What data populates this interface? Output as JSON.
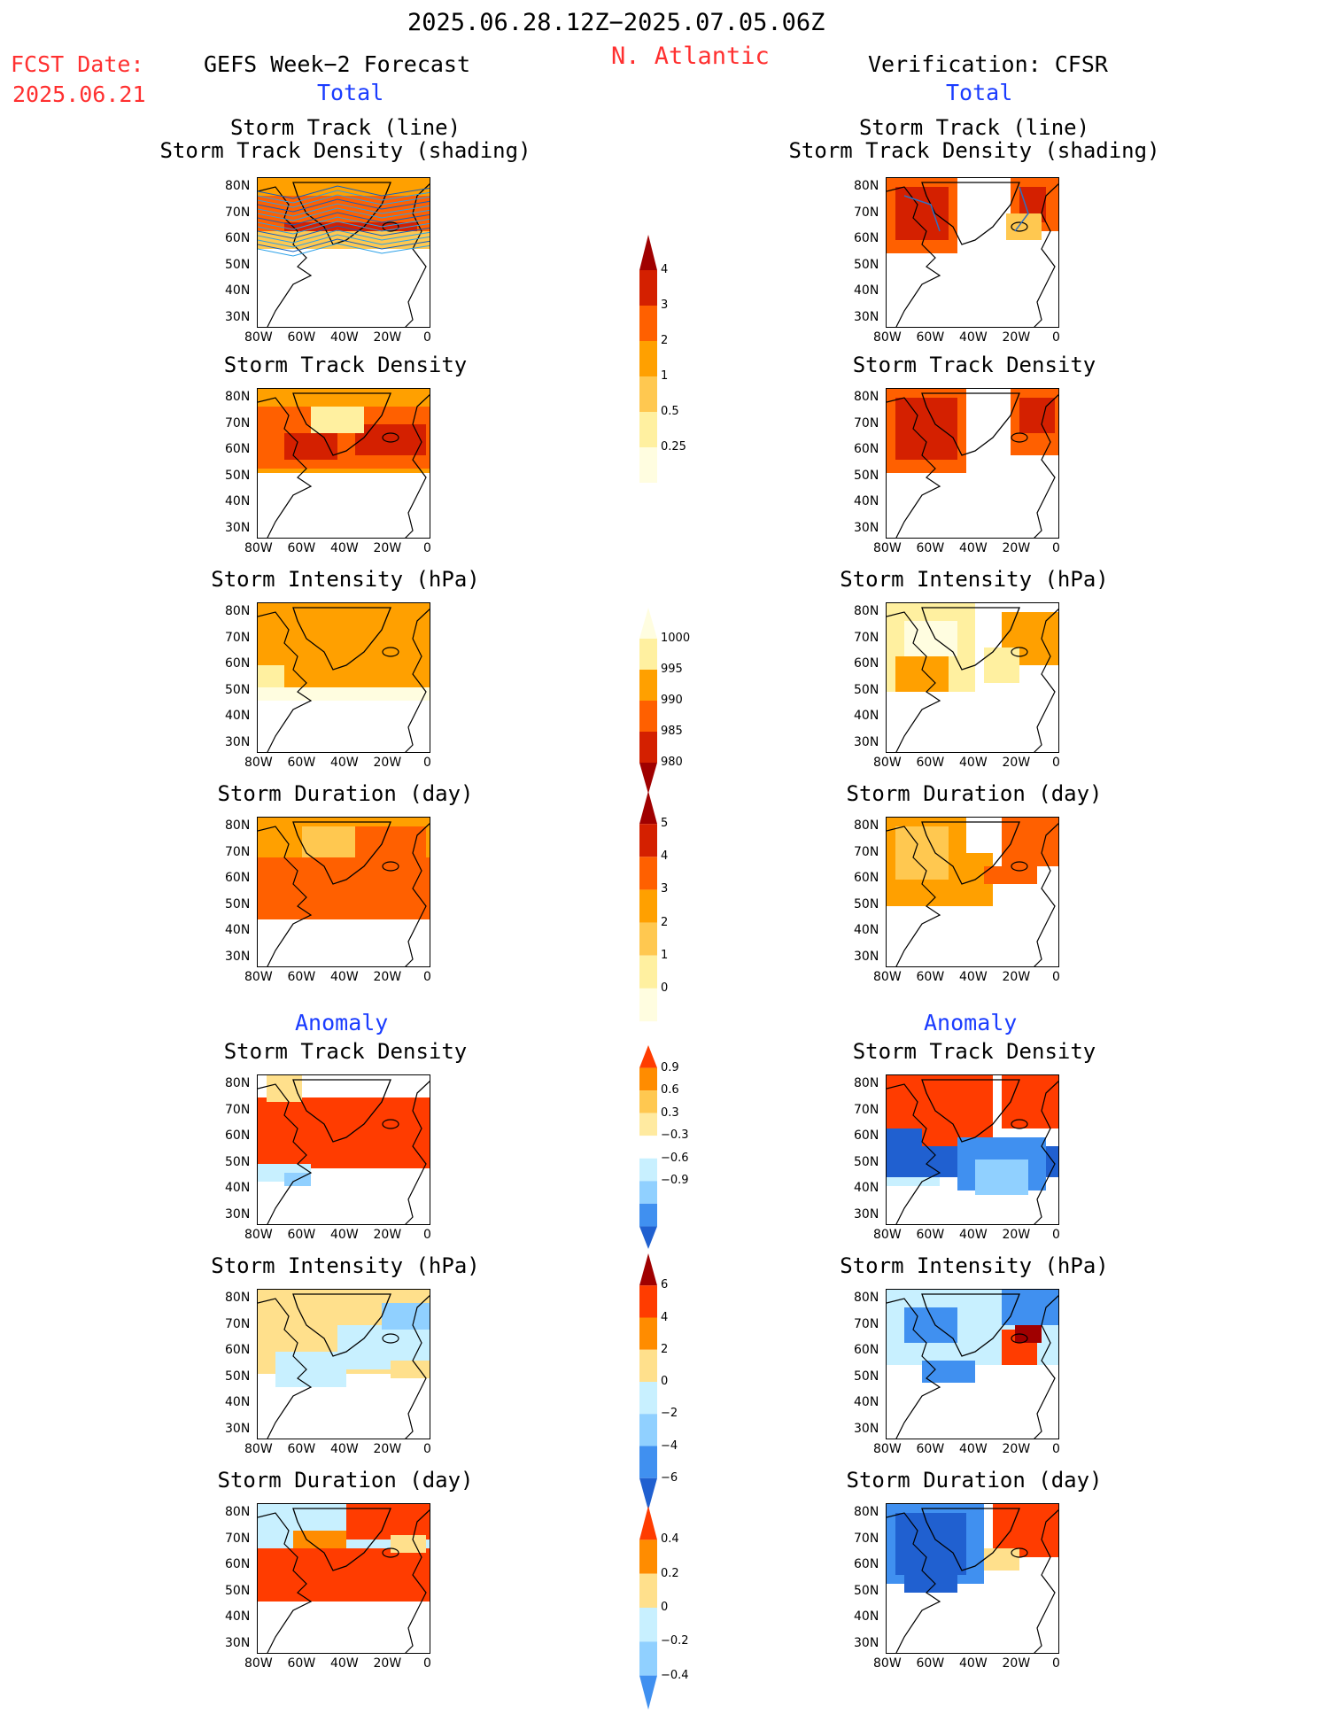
{
  "header": {
    "period": "2025.06.28.12Z−2025.07.05.06Z",
    "region": "N. Atlantic",
    "fcst_label": "FCST Date:",
    "fcst_date": "2025.06.21",
    "left_title": "GEFS Week−2 Forecast",
    "right_title": "Verification: CFSR",
    "total_left": "Total",
    "total_right": "Total",
    "anomaly_left": "Anomaly",
    "anomaly_right": "Anomaly"
  },
  "axes": {
    "y_labels": [
      "80N",
      "70N",
      "60N",
      "50N",
      "40N",
      "30N"
    ],
    "x_labels": [
      "80W",
      "60W",
      "40W",
      "20W",
      "0"
    ]
  },
  "panels": [
    {
      "row": 0,
      "title1": "Storm Track (line)",
      "title2": "Storm Track Density (shading)"
    },
    {
      "row": 1,
      "title1": "Storm Track Density",
      "title2": ""
    },
    {
      "row": 2,
      "title1": "Storm Intensity (hPa)",
      "title2": ""
    },
    {
      "row": 3,
      "title1": "Storm Duration (day)",
      "title2": ""
    },
    {
      "row": 4,
      "title1": "Storm Track Density",
      "title2": ""
    },
    {
      "row": 5,
      "title1": "Storm Intensity (hPa)",
      "title2": ""
    },
    {
      "row": 6,
      "title1": "Storm Duration (day)",
      "title2": ""
    }
  ],
  "colorbars": [
    {
      "id": "density",
      "labels": [
        "4",
        "3",
        "2",
        "1",
        "0.5",
        "0.25"
      ],
      "colors": [
        "#a00000",
        "#d42000",
        "#ff6000",
        "#ffa000",
        "#ffc850",
        "#fff0a0",
        "#fffde0"
      ]
    },
    {
      "id": "intensity",
      "labels": [
        "1000",
        "995",
        "990",
        "985",
        "980"
      ],
      "colors": [
        "#fffde0",
        "#fff0a0",
        "#ffa000",
        "#ff6000",
        "#d42000",
        "#a00000"
      ]
    },
    {
      "id": "duration",
      "labels": [
        "5",
        "4",
        "3",
        "2",
        "1",
        "0"
      ],
      "colors": [
        "#a00000",
        "#d42000",
        "#ff6000",
        "#ffa000",
        "#ffc850",
        "#fff0a0",
        "#fffde0"
      ]
    },
    {
      "id": "density_anom",
      "labels": [
        "0.9",
        "0.6",
        "0.3",
        "−0.3",
        "−0.6",
        "−0.9"
      ],
      "colors": [
        "#ff3c00",
        "#ff8c00",
        "#ffc850",
        "#ffeaa0",
        "#ffffff",
        "#c8f0ff",
        "#90d0ff",
        "#4090f0",
        "#2060d0"
      ]
    },
    {
      "id": "intensity_anom",
      "labels": [
        "6",
        "4",
        "2",
        "0",
        "−2",
        "−4",
        "−6"
      ],
      "colors": [
        "#a00000",
        "#ff3c00",
        "#ff8c00",
        "#ffe08c",
        "#c8f0ff",
        "#90d0ff",
        "#4090f0",
        "#2060d0"
      ]
    },
    {
      "id": "duration_anom",
      "labels": [
        "0.4",
        "0.2",
        "0",
        "−0.2",
        "−0.4"
      ],
      "colors": [
        "#ff3c00",
        "#ff8c00",
        "#ffe08c",
        "#c8f0ff",
        "#90d0ff",
        "#4090f0"
      ]
    }
  ]
}
